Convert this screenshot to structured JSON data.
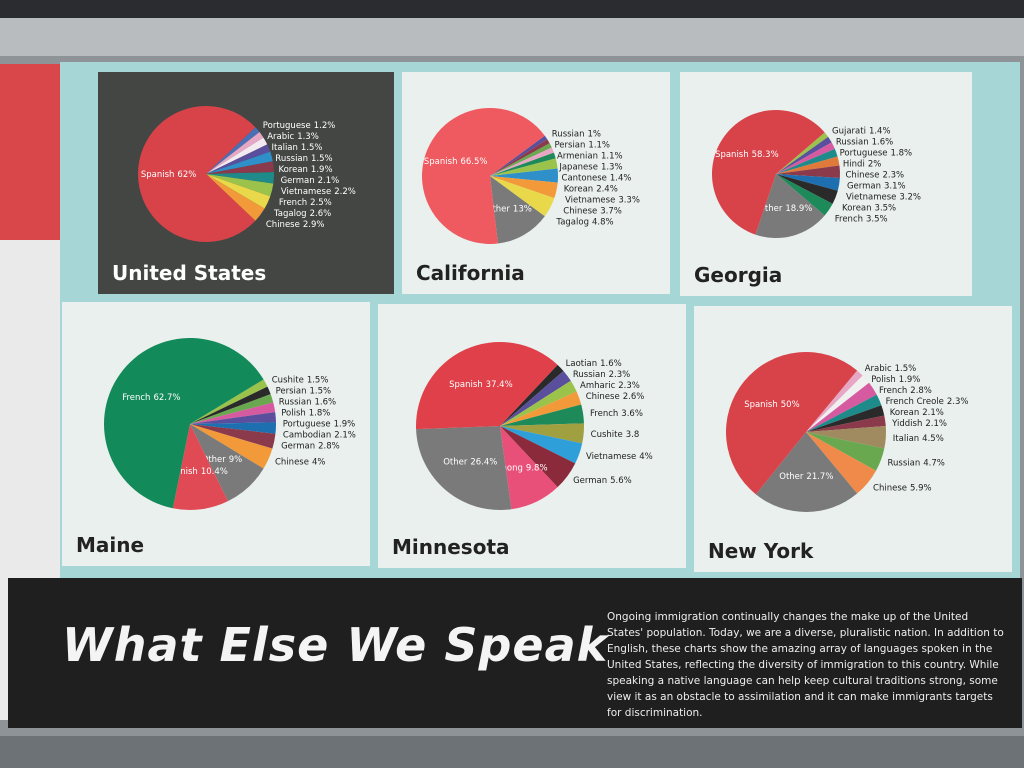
{
  "chart_data": [
    {
      "type": "pie",
      "title": "United States",
      "categories": [
        "Portuguese",
        "Arabic",
        "Italian",
        "Russian",
        "Korean",
        "German",
        "Vietnamese",
        "French",
        "Tagalog",
        "Chinese",
        "Spanish"
      ],
      "values": [
        1.2,
        1.3,
        1.5,
        1.5,
        1.9,
        2.1,
        2.2,
        2.5,
        2.6,
        2.9,
        62
      ],
      "value_labels": [
        "1.2%",
        "1.3%",
        "1.5%",
        "1.5%",
        "1.9%",
        "2.1%",
        "2.2%",
        "2.5%",
        "2.6%",
        "2.9%",
        "62%"
      ],
      "colors": [
        "#4a6fb5",
        "#e6a6c4",
        "#f3e9f0",
        "#5a4f9c",
        "#2f8fc9",
        "#8a3a4a",
        "#1e8a8a",
        "#9bc24a",
        "#e8d84a",
        "#f29a3a",
        "#d8434a"
      ]
    },
    {
      "type": "pie",
      "title": "California",
      "categories": [
        "Russian",
        "Persian",
        "Armenian",
        "Japanese",
        "Cantonese",
        "Korean",
        "Vietnamese",
        "Chinese",
        "Tagalog",
        "Other",
        "Spanish"
      ],
      "values": [
        1,
        1.1,
        1.1,
        1.3,
        1.4,
        2.4,
        3.3,
        3.7,
        4.8,
        13,
        66.5
      ],
      "value_labels": [
        "1%",
        "1.1%",
        "1.1%",
        "1.3%",
        "1.4%",
        "2.4%",
        "3.3%",
        "3.7%",
        "4.8%",
        "13%",
        "66.5%"
      ],
      "colors": [
        "#5a4f9c",
        "#8a3a4a",
        "#6aa84f",
        "#e6a6c4",
        "#1e8a5a",
        "#9bc24a",
        "#2f8fc9",
        "#f29a3a",
        "#e8d84a",
        "#7a7a7a",
        "#ee5a5f"
      ]
    },
    {
      "type": "pie",
      "title": "Georgia",
      "categories": [
        "Gujarati",
        "Russian",
        "Portuguese",
        "Hindi",
        "Chinese",
        "German",
        "Vietnamese",
        "Korean",
        "French",
        "Other",
        "Spanish"
      ],
      "values": [
        1.4,
        1.6,
        1.8,
        2,
        2.3,
        3.1,
        3.2,
        3.5,
        3.5,
        18.9,
        58.3
      ],
      "value_labels": [
        "1.4%",
        "1.6%",
        "1.8%",
        "2%",
        "2.3%",
        "3.1%",
        "3.2%",
        "3.5%",
        "3.5%",
        "18.9%",
        "58.3%"
      ],
      "colors": [
        "#9bc24a",
        "#5a4f9c",
        "#d65aa0",
        "#1e8a8a",
        "#e07a3a",
        "#8a3a4a",
        "#1e6fb0",
        "#2a2a2a",
        "#1e8a5a",
        "#7a7a7a",
        "#d8434a"
      ]
    },
    {
      "type": "pie",
      "title": "Maine",
      "categories": [
        "Cushite",
        "Persian",
        "Russian",
        "Polish",
        "Portuguese",
        "Cambodian",
        "German",
        "Chinese",
        "Other",
        "Spanish",
        "French"
      ],
      "values": [
        1.5,
        1.5,
        1.6,
        1.8,
        1.9,
        2.1,
        2.8,
        4,
        9,
        10.4,
        62.7
      ],
      "value_labels": [
        "1.5%",
        "1.5%",
        "1.6%",
        "1.8%",
        "1.9%",
        "2.1%",
        "2.8%",
        "4%",
        "9%",
        "10.4%",
        "62.7%"
      ],
      "colors": [
        "#9bc24a",
        "#2a2a2a",
        "#6aa84f",
        "#d65aa0",
        "#5a4f9c",
        "#1e6fb0",
        "#8a3a4a",
        "#f29a3a",
        "#7a7a7a",
        "#e04a55",
        "#138a5a"
      ]
    },
    {
      "type": "pie",
      "title": "Minnesota",
      "categories": [
        "Laotian",
        "Russian",
        "Amharic",
        "Chinese",
        "French",
        "Cushite",
        "Vietnamese",
        "German",
        "Hmong",
        "Other",
        "Spanish"
      ],
      "values": [
        1.6,
        2.3,
        2.3,
        2.6,
        3.6,
        3.8,
        4,
        5.6,
        9.8,
        26.4,
        37.4
      ],
      "value_labels": [
        "1.6%",
        "2.3%",
        "2.3%",
        "2.6%",
        "3.6%",
        "3.8",
        "4%",
        "5.6%",
        "9.8%",
        "26.4%",
        "37.4%"
      ],
      "colors": [
        "#2a2a2a",
        "#5a4f9c",
        "#9bc24a",
        "#f29a3a",
        "#1e8a5a",
        "#a0a040",
        "#2f9fd9",
        "#8a2a3a",
        "#e8507a",
        "#7a7a7a",
        "#e0404a"
      ]
    },
    {
      "type": "pie",
      "title": "New York",
      "categories": [
        "Arabic",
        "Polish",
        "French",
        "French Creole",
        "Korean",
        "Yiddish",
        "Italian",
        "Russian",
        "Chinese",
        "Other",
        "Spanish"
      ],
      "values": [
        1.5,
        1.9,
        2.8,
        2.3,
        2.1,
        2.1,
        4.5,
        4.7,
        5.9,
        21.7,
        50
      ],
      "value_labels": [
        "1.5%",
        "1.9%",
        "2.8%",
        "2.3%",
        "2.1%",
        "2.1%",
        "4.5%",
        "4.7%",
        "5.9%",
        "21.7%",
        "50%"
      ],
      "colors": [
        "#e6a6c4",
        "#f0f0f0",
        "#d65aa0",
        "#1e8a8a",
        "#2a2a2a",
        "#8a3a4a",
        "#a08a60",
        "#6aa84f",
        "#f08a4a",
        "#7a7a7a",
        "#d8434a"
      ]
    }
  ],
  "panel": {
    "title": "What Else We Speak",
    "text": "Ongoing immigration continually changes the make up of the United States' population. Today, we are a diverse, pluralistic nation. In addition to English, these charts show the amazing array of languages spoken in the United States, reflecting the diversity of immigration to this country. While speaking a native language can help keep cultural traditions strong, some view it as an obstacle to assimilation and it can make immigrants targets for discrimination."
  }
}
